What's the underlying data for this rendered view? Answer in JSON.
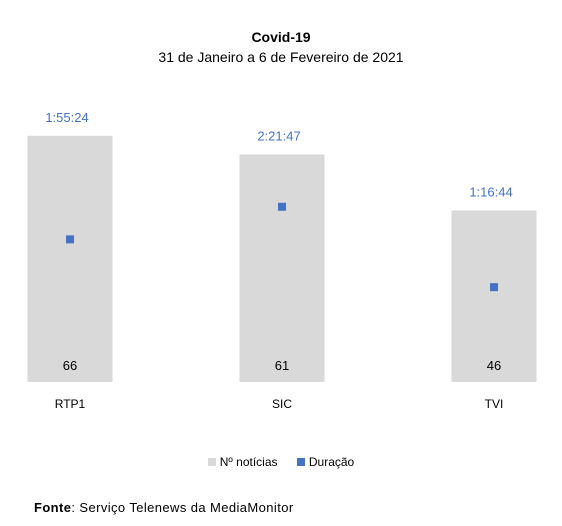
{
  "chart_data": {
    "type": "bar",
    "title": "Covid-19",
    "subtitle": "31 de Janeiro a 6 de Fevereiro de 2021",
    "categories": [
      "RTP1",
      "SIC",
      "TVI"
    ],
    "series": [
      {
        "name": "Nº notícias",
        "values": [
          66,
          61,
          46
        ],
        "color": "#d9d9d9"
      },
      {
        "name": "Duração",
        "values": [
          "1:55:24",
          "2:21:47",
          "1:16:44"
        ],
        "seconds": [
          6924,
          8507,
          4604
        ],
        "color": "#4472c4"
      }
    ],
    "grid": false,
    "legend_position": "bottom"
  },
  "source": {
    "label": "Fonte",
    "text": ": Serviço Telenews da MediaMonitor"
  }
}
